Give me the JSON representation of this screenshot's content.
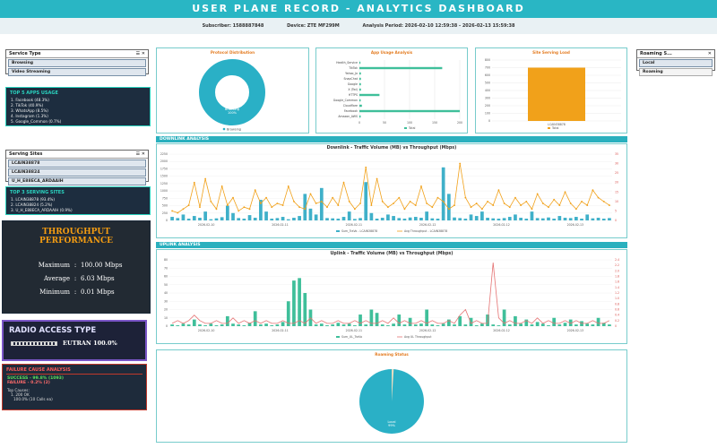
{
  "header": {
    "title": "USER PLANE RECORD - ANALYTICS DASHBOARD",
    "subscriber": "Subscriber: 1588887848",
    "device": "Device: ZTE MF299M",
    "period": "Analysis Period: 2026-02-10 12:59:38 - 2026-02-13 15:59:38"
  },
  "service_type": {
    "title": "Service Type",
    "items": [
      "Browsing",
      "Video Streaming"
    ]
  },
  "top_apps": {
    "title": "TOP 5 APPS USAGE",
    "items": [
      "1. Facebook (48.3%)",
      "2. TikTok (40.9%)",
      "3. WhatsApp (8.5%)",
      "4. Instagram (1.3%)",
      "5. Google_Common (0.7%)"
    ]
  },
  "serving_sites": {
    "title": "Serving Sites",
    "items": [
      "LCAIN38878",
      "LCAIN38824",
      "U_H_E88ECA_ARDAAIH"
    ]
  },
  "top_sites": {
    "title": "TOP 3 SERVING SITES",
    "items": [
      "1. LCAIN38878 (93.4%)",
      "2. LCAIN38824 (5.2%)",
      "3. U_H_E88ECA_ARDAAIH (0.9%)"
    ]
  },
  "throughput": {
    "title_line1": "THROUGHPUT",
    "title_line2": "PERFORMANCE",
    "rows": [
      {
        "label": "Maximum",
        "value": "100.00 Mbps"
      },
      {
        "label": "Average",
        "value": "6.03 Mbps"
      },
      {
        "label": "Minimum",
        "value": "0.01 Mbps"
      }
    ]
  },
  "rat": {
    "title": "RADIO ACCESS TYPE",
    "value": "EUTRAN 100.0%",
    "fill": 1.0
  },
  "failure": {
    "title": "FAILURE CAUSE ANALYSIS",
    "success": "SUCCESS - 99.8% (1093)",
    "failure": "FAILURE - 0.2% (2)",
    "causes_title": "Top Causes:",
    "causes": [
      "1. 200 OK",
      "100.0% (10 Calls ea)"
    ]
  },
  "roaming_selector": {
    "title": "Roaming S...",
    "items": [
      "Local",
      "Roaming"
    ]
  },
  "colors": {
    "teal": "#29b6c4",
    "green": "#3fbf9a",
    "orange": "#f1a11a",
    "navy": "#1d2d3f",
    "red": "#e57373"
  },
  "chart_data": [
    {
      "type": "pie",
      "title": "Protocol Distribution",
      "slices": [
        {
          "name": "Browsing",
          "value": 100
        }
      ],
      "slice_label": "Browsing",
      "slice_pct": "100%",
      "legend": [
        "Browsing"
      ]
    },
    {
      "type": "bar",
      "title": "App Usage Analysis",
      "orientation": "horizontal",
      "categories": [
        "Health_Service",
        "TikTok",
        "Yahoo_Ja",
        "SnapChat",
        "Google",
        "X (Twi)",
        "HTTPS",
        "Google_Common",
        "Cloudflare",
        "Facebook",
        "Amazon_AWS"
      ],
      "values": [
        4,
        330,
        6,
        6,
        6,
        6,
        80,
        5,
        10,
        400,
        5
      ],
      "xlim": [
        0,
        400
      ],
      "xticks": [
        "0",
        "50",
        "100",
        "150",
        "200"
      ],
      "legend": [
        "Total"
      ]
    },
    {
      "type": "bar",
      "title": "Site Serving Load",
      "categories": [
        "LCAIN38878"
      ],
      "values": [
        700
      ],
      "ylim": [
        0,
        800
      ],
      "yticks": [
        "0",
        "100",
        "200",
        "300",
        "400",
        "500",
        "600",
        "700",
        "800"
      ],
      "legend": [
        "Total"
      ]
    },
    {
      "type": "bar+line",
      "section": "DOWNLINK ANALYSIS",
      "title": "Downlink - Traffic Volume (MB) vs Throughput (Mbps)",
      "yticks_left": [
        "0",
        "250",
        "500",
        "750",
        "1000",
        "1250",
        "1500",
        "1750",
        "2000",
        "2250"
      ],
      "yticks_right": [
        "0",
        "5",
        "10",
        "15",
        "20",
        "25",
        "30",
        "35"
      ],
      "xticks": [
        "2026-02-10",
        "2026-02-11",
        "2026-02-11",
        "2026-02-12",
        "2026-02-12",
        "2026-02-13"
      ],
      "series": [
        {
          "name": "Sum_TraVo - LCAIN38878",
          "type": "bar",
          "values": [
            120,
            80,
            200,
            60,
            150,
            90,
            300,
            40,
            70,
            110,
            500,
            250,
            80,
            60,
            180,
            90,
            700,
            300,
            60,
            80,
            120,
            40,
            90,
            150,
            900,
            400,
            200,
            1100,
            80,
            70,
            60,
            120,
            300,
            50,
            80,
            1300,
            250,
            60,
            90,
            200,
            150,
            80,
            60,
            100,
            120,
            90,
            300,
            70,
            60,
            1800,
            900,
            100,
            80,
            60,
            200,
            150,
            300,
            90,
            70,
            60,
            80,
            120,
            200,
            90,
            60,
            300,
            80,
            70,
            100,
            60,
            150,
            90,
            80,
            120,
            60,
            200,
            70,
            90,
            60,
            80
          ]
        },
        {
          "name": "Avg Throughput - LCAIN38878",
          "type": "line",
          "values": [
            5,
            4,
            6,
            8,
            20,
            7,
            22,
            10,
            6,
            18,
            8,
            12,
            5,
            7,
            6,
            16,
            9,
            12,
            7,
            9,
            8,
            18,
            10,
            7,
            6,
            14,
            9,
            10,
            7,
            12,
            8,
            20,
            10,
            6,
            9,
            28,
            8,
            22,
            10,
            7,
            9,
            12,
            6,
            10,
            8,
            18,
            9,
            7,
            12,
            10,
            6,
            8,
            30,
            12,
            7,
            9,
            6,
            10,
            8,
            16,
            9,
            7,
            12,
            8,
            10,
            6,
            14,
            9,
            7,
            11,
            8,
            15,
            9,
            6,
            10,
            8,
            16,
            12,
            10,
            8
          ]
        }
      ]
    },
    {
      "type": "bar+line",
      "section": "UPLINK ANALYSIS",
      "title": "Uplink - Traffic Volume (MB) vs Throughput (Mbps)",
      "yticks_left": [
        "0",
        "10",
        "20",
        "30",
        "40",
        "50",
        "60",
        "70",
        "80"
      ],
      "yticks_right": [
        "0",
        "0.2",
        "0.4",
        "0.6",
        "0.8",
        "1.0",
        "1.2",
        "1.4",
        "1.6",
        "1.8",
        "2.0",
        "2.2",
        "2.4"
      ],
      "xticks": [
        "2026-02-10",
        "2026-02-11",
        "2026-02-11",
        "2026-02-12",
        "2026-02-12",
        "2026-02-13"
      ],
      "series": [
        {
          "name": "Sum_UL_TraVo",
          "type": "bar",
          "values": [
            2,
            1,
            3,
            2,
            8,
            2,
            1,
            3,
            1,
            2,
            12,
            3,
            2,
            1,
            4,
            18,
            2,
            3,
            1,
            2,
            5,
            30,
            55,
            58,
            40,
            20,
            2,
            3,
            1,
            2,
            4,
            2,
            3,
            1,
            14,
            2,
            20,
            16,
            2,
            1,
            3,
            14,
            2,
            10,
            2,
            3,
            20,
            2,
            1,
            3,
            8,
            2,
            12,
            2,
            10,
            1,
            3,
            14,
            2,
            1,
            20,
            2,
            12,
            3,
            8,
            2,
            5,
            3,
            1,
            10,
            2,
            4,
            8,
            2,
            6,
            3,
            2,
            10,
            4,
            2
          ]
        },
        {
          "name": "Avg UL Throughput",
          "type": "line",
          "values": [
            0.1,
            0.2,
            0.1,
            0.2,
            0.4,
            0.2,
            0.1,
            0.1,
            0.2,
            0.1,
            0.1,
            0.3,
            0.1,
            0.2,
            0.1,
            0.2,
            0.1,
            0.2,
            0.1,
            0.1,
            0.2,
            0.1,
            0.1,
            0.2,
            0.1,
            0.3,
            0.1,
            0.2,
            0.1,
            0.1,
            0.2,
            0.1,
            0.1,
            0.2,
            0.1,
            0.2,
            0.1,
            0.1,
            0.2,
            0.1,
            0.3,
            0.1,
            0.2,
            0.1,
            0.1,
            0.2,
            0.1,
            0.2,
            0.1,
            0.1,
            0.2,
            0.1,
            0.4,
            0.6,
            0.1,
            0.2,
            0.1,
            0.1,
            2.3,
            0.3,
            0.1,
            0.2,
            0.1,
            0.1,
            0.2,
            0.1,
            0.3,
            0.1,
            0.2,
            0.1,
            0.1,
            0.2,
            0.1,
            0.2,
            0.1,
            0.1,
            0.2,
            0.1,
            0.1,
            0.2
          ]
        }
      ]
    },
    {
      "type": "pie",
      "title": "Roaming Status",
      "slices": [
        {
          "name": "Local",
          "value": 99
        },
        {
          "name": "Roaming",
          "value": 1
        }
      ],
      "slice_label": "Local",
      "slice_pct": "99%"
    }
  ]
}
